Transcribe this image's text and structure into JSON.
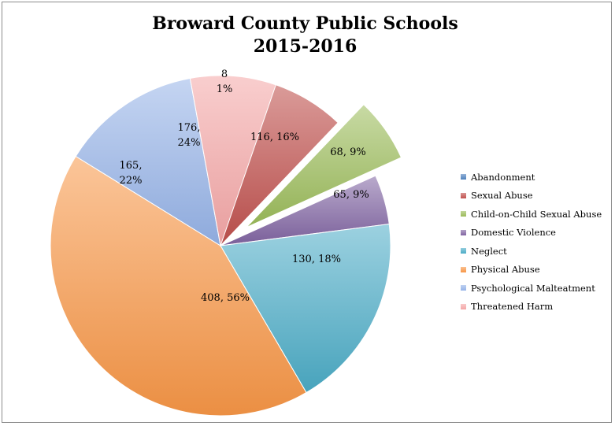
{
  "chart_data": {
    "type": "pie",
    "title_lines": [
      "Broward County Public Schools",
      "2015-2016"
    ],
    "slices": [
      {
        "name": "Abandonment",
        "value": 8,
        "percent": "1%",
        "color": "#4f81bd",
        "label_lines": [
          "8",
          "1%"
        ]
      },
      {
        "name": "Sexual Abuse",
        "value": 116,
        "percent": "16%",
        "color": "#c0504d",
        "label_lines": [
          "116, 16%"
        ]
      },
      {
        "name": "Child-on-Child Sexual Abuse",
        "value": 68,
        "percent": "9%",
        "color": "#9bbb59",
        "label_lines": [
          "68, 9%"
        ],
        "exploded": true
      },
      {
        "name": "Domestic Violence",
        "value": 65,
        "percent": "9%",
        "color": "#8064a2",
        "label_lines": [
          "65, 9%"
        ]
      },
      {
        "name": "Neglect",
        "value": 130,
        "percent": "18%",
        "color": "#4bacc6",
        "label_lines": [
          "130, 18%"
        ]
      },
      {
        "name": "Physical Abuse",
        "value": 408,
        "percent": "56%",
        "color": "#f79646",
        "label_lines": [
          "408, 56%"
        ]
      },
      {
        "name": "Psychological Malteatment",
        "value": 165,
        "percent": "22%",
        "color": "#95b3e8",
        "label_lines": [
          "165,",
          "22%"
        ]
      },
      {
        "name": "Threatened Harm",
        "value": 176,
        "percent": "24%",
        "color": "#f4a6a6",
        "label_lines": [
          "176,",
          "24%"
        ]
      }
    ],
    "legend_position": "right"
  }
}
